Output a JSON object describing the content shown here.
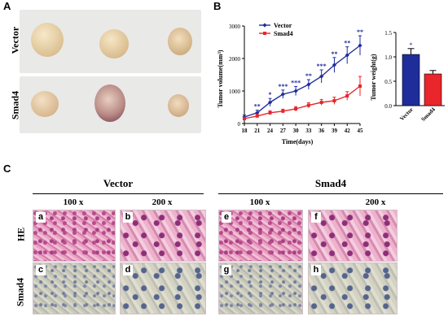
{
  "panels": {
    "a": "A",
    "b": "B",
    "c": "C"
  },
  "panel_a": {
    "row_labels": [
      "Vector",
      "Smad4"
    ]
  },
  "line_chart": {
    "type": "line",
    "xlabel": "Time(days)",
    "ylabel": "Tumor volume(mm³)",
    "x": [
      18,
      21,
      24,
      27,
      30,
      33,
      36,
      39,
      42,
      45
    ],
    "xlim": [
      18,
      45
    ],
    "ylim": [
      0,
      3000
    ],
    "yticks": [
      0,
      1000,
      2000,
      3000
    ],
    "series": [
      {
        "name": "Vector",
        "color": "#1f2d9b",
        "values": [
          200,
          330,
          650,
          900,
          1000,
          1200,
          1450,
          1800,
          2100,
          2400
        ],
        "errors": [
          60,
          80,
          120,
          130,
          140,
          150,
          200,
          230,
          260,
          300
        ]
      },
      {
        "name": "Smad4",
        "color": "#e8262b",
        "values": [
          150,
          230,
          330,
          380,
          450,
          560,
          650,
          700,
          850,
          1150
        ],
        "errors": [
          40,
          50,
          60,
          60,
          70,
          80,
          90,
          110,
          130,
          300
        ]
      }
    ],
    "annotations": [
      "**",
      "*",
      "***",
      "***",
      "**",
      "***",
      "**",
      "**",
      "**"
    ]
  },
  "bar_chart": {
    "type": "bar",
    "categories": [
      "Vector",
      "Smad4"
    ],
    "values": [
      1.05,
      0.65
    ],
    "errors": [
      0.12,
      0.07
    ],
    "colors": [
      "#1f2d9b",
      "#e8262b"
    ],
    "ylabel": "Tumor weight(g)",
    "ylim": [
      0,
      1.5
    ],
    "yticks": [
      0,
      0.5,
      1,
      1.5
    ],
    "yticklabels": [
      "0.0",
      "0.5",
      "1.0",
      "1.5"
    ],
    "annotation": "*"
  },
  "panel_c": {
    "group_labels": [
      "Vector",
      "Smad4"
    ],
    "mag_labels": [
      "100 x",
      "200 x",
      "100 x",
      "200 x"
    ],
    "row_labels": [
      "HE",
      "Smad4"
    ],
    "tile_labels": [
      "a",
      "b",
      "e",
      "f",
      "c",
      "d",
      "g",
      "h"
    ]
  },
  "chart_data": [
    {
      "type": "line",
      "xlabel": "Time(days)",
      "ylabel": "Tumor volume(mm³)",
      "x": [
        18,
        21,
        24,
        27,
        30,
        33,
        36,
        39,
        42,
        45
      ],
      "ylim": [
        0,
        3000
      ],
      "series": [
        {
          "name": "Vector",
          "values": [
            200,
            330,
            650,
            900,
            1000,
            1200,
            1450,
            1800,
            2100,
            2400
          ]
        },
        {
          "name": "Smad4",
          "values": [
            150,
            230,
            330,
            380,
            450,
            560,
            650,
            700,
            850,
            1150
          ]
        }
      ]
    },
    {
      "type": "bar",
      "categories": [
        "Vector",
        "Smad4"
      ],
      "values": [
        1.05,
        0.65
      ],
      "ylabel": "Tumor weight(g)",
      "ylim": [
        0,
        1.5
      ]
    }
  ]
}
